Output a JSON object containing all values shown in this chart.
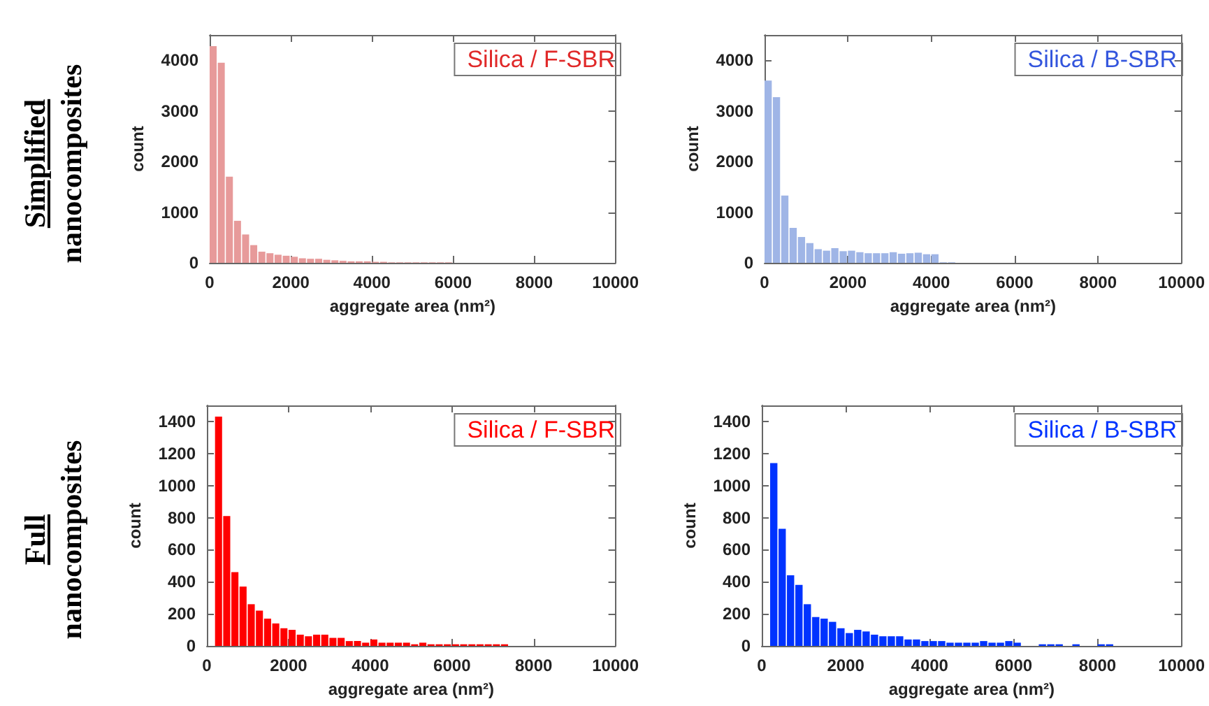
{
  "chart_data": [
    {
      "type": "histogram",
      "xlabel": "aggregate area (nm²)",
      "ylabel": "count",
      "annotations": [
        "Simplified",
        "nanocomposites"
      ],
      "legend": "top right",
      "xlim": [
        0,
        10000
      ],
      "xticks": [
        0,
        2000,
        4000,
        6000,
        8000,
        10000
      ],
      "ylim": [
        0,
        4500
      ],
      "yticks": [
        0,
        1000,
        2000,
        3000,
        4000
      ],
      "bins": [
        0,
        200,
        400,
        600,
        800,
        1000,
        1200,
        1400,
        1600,
        1800,
        2000,
        2200,
        2400,
        2600,
        2800,
        3000,
        3200,
        3400,
        3600,
        3800,
        4000,
        4200,
        4400,
        4600,
        4800,
        5000,
        5200,
        5400,
        5600,
        5800,
        6000
      ],
      "series": [
        {
          "name": "Silica / F-SBR",
          "color": "#e79a9a",
          "values": [
            4280,
            3950,
            1700,
            830,
            560,
            350,
            220,
            190,
            160,
            140,
            120,
            90,
            80,
            80,
            60,
            50,
            40,
            30,
            30,
            30,
            20,
            20,
            10,
            10,
            10,
            10,
            10,
            10,
            10,
            10
          ]
        }
      ]
    },
    {
      "type": "histogram",
      "xlabel": "aggregate area (nm²)",
      "ylabel": "count",
      "legend": "top right",
      "xlim": [
        0,
        10000
      ],
      "xticks": [
        0,
        2000,
        4000,
        6000,
        8000,
        10000
      ],
      "ylim": [
        0,
        4500
      ],
      "yticks": [
        0,
        1000,
        2000,
        3000,
        4000
      ],
      "bins": [
        0,
        200,
        400,
        600,
        800,
        1000,
        1200,
        1400,
        1600,
        1800,
        2000,
        2200,
        2400,
        2600,
        2800,
        3000,
        3200,
        3400,
        3600,
        3800,
        4000,
        4200,
        4400,
        4600
      ],
      "series": [
        {
          "name": "Silica / B-SBR",
          "color": "#9fb5e6",
          "values": [
            3600,
            3270,
            1330,
            690,
            510,
            390,
            270,
            240,
            290,
            230,
            240,
            210,
            190,
            190,
            190,
            210,
            180,
            190,
            200,
            170,
            170,
            10,
            10
          ]
        }
      ]
    },
    {
      "type": "histogram",
      "xlabel": "aggregate area (nm²)",
      "ylabel": "count",
      "annotations": [
        "Full",
        "nanocomposites"
      ],
      "legend": "top right",
      "xlim": [
        0,
        10000
      ],
      "xticks": [
        0,
        2000,
        4000,
        6000,
        8000,
        10000
      ],
      "ylim": [
        0,
        1500
      ],
      "yticks": [
        0,
        200,
        400,
        600,
        800,
        1000,
        1200,
        1400
      ],
      "bins": [
        200,
        400,
        600,
        800,
        1000,
        1200,
        1400,
        1600,
        1800,
        2000,
        2200,
        2400,
        2600,
        2800,
        3000,
        3200,
        3400,
        3600,
        3800,
        4000,
        4200,
        4400,
        4600,
        4800,
        5000,
        5200,
        5400,
        5600,
        5800,
        6000,
        6200,
        6400,
        6600,
        6800,
        7000,
        7200,
        7400
      ],
      "series": [
        {
          "name": "Silica / F-SBR",
          "color": "#ff0000",
          "values": [
            1430,
            810,
            460,
            370,
            260,
            220,
            170,
            140,
            110,
            100,
            70,
            60,
            70,
            70,
            50,
            50,
            30,
            30,
            20,
            40,
            20,
            20,
            20,
            20,
            10,
            20,
            10,
            10,
            10,
            10,
            10,
            10,
            10,
            10,
            10,
            10
          ]
        }
      ]
    },
    {
      "type": "histogram",
      "xlabel": "aggregate area (nm²)",
      "ylabel": "count",
      "legend": "top right",
      "xlim": [
        0,
        10000
      ],
      "xticks": [
        0,
        2000,
        4000,
        6000,
        8000,
        10000
      ],
      "ylim": [
        0,
        1500
      ],
      "yticks": [
        0,
        200,
        400,
        600,
        800,
        1000,
        1200,
        1400
      ],
      "bins": [
        200,
        400,
        600,
        800,
        1000,
        1200,
        1400,
        1600,
        1800,
        2000,
        2200,
        2400,
        2600,
        2800,
        3000,
        3200,
        3400,
        3600,
        3800,
        4000,
        4200,
        4400,
        4600,
        4800,
        5000,
        5200,
        5400,
        5600,
        5800,
        6000,
        6200,
        6400,
        6600,
        6800,
        7000,
        7200,
        7400,
        7600,
        7800,
        8000,
        8200,
        8400
      ],
      "series": [
        {
          "name": "Silica / B-SBR",
          "color": "#0033ff",
          "values": [
            1140,
            730,
            440,
            380,
            260,
            180,
            170,
            150,
            110,
            80,
            100,
            90,
            70,
            60,
            60,
            60,
            40,
            40,
            30,
            30,
            30,
            20,
            20,
            20,
            20,
            30,
            20,
            20,
            30,
            20,
            0,
            0,
            10,
            10,
            10,
            0,
            10,
            0,
            0,
            10,
            10
          ]
        }
      ]
    }
  ]
}
